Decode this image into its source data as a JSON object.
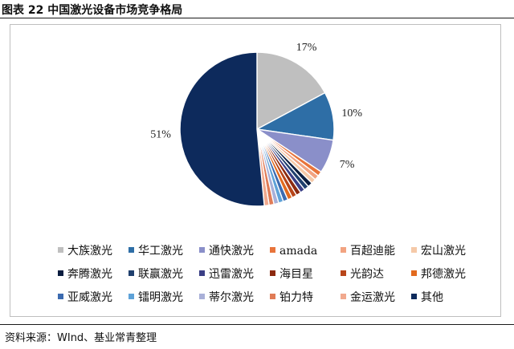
{
  "figure": {
    "title": "图表 22 中国激光设备市场竞争格局",
    "source": "资料来源：WInd、基业常青整理"
  },
  "chart_data": {
    "type": "pie",
    "title": "",
    "start_angle_deg": 0,
    "direction": "clockwise",
    "legend_position": "bottom",
    "slices": [
      {
        "name": "大族激光",
        "value": 17,
        "color": "#bfbfbf",
        "label": "17%"
      },
      {
        "name": "华工激光",
        "value": 10,
        "color": "#2e6ea6",
        "label": "10%"
      },
      {
        "name": "通快激光",
        "value": 7,
        "color": "#8a8fc9",
        "label": "7%"
      },
      {
        "name": "amada",
        "value": 1,
        "color": "#e8743b",
        "label": ""
      },
      {
        "name": "百超迪能",
        "value": 1,
        "color": "#f2a381",
        "label": ""
      },
      {
        "name": "宏山激光",
        "value": 1,
        "color": "#f5c9a8",
        "label": ""
      },
      {
        "name": "奔腾激光",
        "value": 1,
        "color": "#0b1d3f",
        "label": ""
      },
      {
        "name": "联赢激光",
        "value": 1,
        "color": "#20406e",
        "label": ""
      },
      {
        "name": "迅雷激光",
        "value": 1,
        "color": "#3b3f86",
        "label": ""
      },
      {
        "name": "海目星",
        "value": 1,
        "color": "#8c2a10",
        "label": ""
      },
      {
        "name": "光韵达",
        "value": 1,
        "color": "#b8461a",
        "label": ""
      },
      {
        "name": "邦德激光",
        "value": 1,
        "color": "#e26a1e",
        "label": ""
      },
      {
        "name": "亚威激光",
        "value": 1,
        "color": "#3c6bb0",
        "label": ""
      },
      {
        "name": "镭明激光",
        "value": 1,
        "color": "#5ea2d8",
        "label": ""
      },
      {
        "name": "蒂尔激光",
        "value": 1,
        "color": "#a9b0d8",
        "label": ""
      },
      {
        "name": "铂力特",
        "value": 1,
        "color": "#e07b56",
        "label": ""
      },
      {
        "name": "金运激光",
        "value": 1,
        "color": "#f1a98e",
        "label": ""
      },
      {
        "name": "其他",
        "value": 51,
        "color": "#0d2a5c",
        "label": "51%"
      }
    ]
  }
}
